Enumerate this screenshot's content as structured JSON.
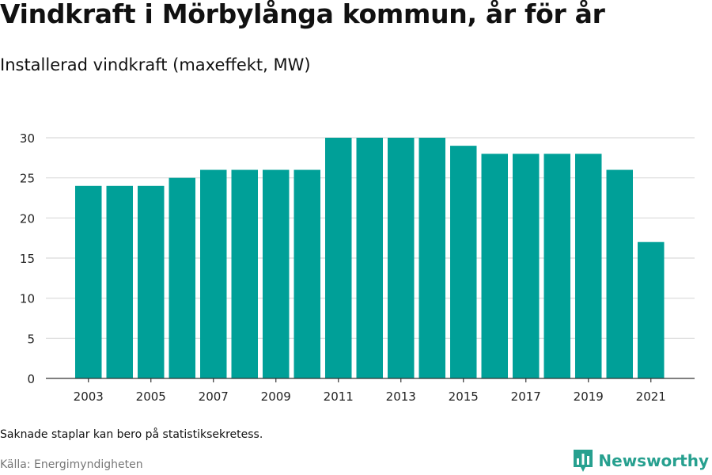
{
  "title": "Vindkraft i Mörbylånga kommun, år för år",
  "subtitle": "Installerad vindkraft (maxeffekt, MW)",
  "note": "Saknade staplar kan bero på statistiksekretess.",
  "source": "Källa: Energimyndigheten",
  "brand": {
    "name": "Newsworthy",
    "icon": "newsworthy-logo-icon"
  },
  "colors": {
    "bar": "#00a098",
    "brand": "#27a08f",
    "grid": "#d9d9d9",
    "axis": "#333333"
  },
  "chart_data": {
    "type": "bar",
    "categories": [
      "2003",
      "2004",
      "2005",
      "2006",
      "2007",
      "2008",
      "2009",
      "2010",
      "2011",
      "2012",
      "2013",
      "2014",
      "2015",
      "2016",
      "2017",
      "2018",
      "2019",
      "2020",
      "2021"
    ],
    "values": [
      24,
      24,
      24,
      25,
      26,
      26,
      26,
      26,
      30,
      30,
      30,
      30,
      29,
      28,
      28,
      28,
      28,
      26,
      17
    ],
    "x_tick_labels": [
      "2003",
      "2005",
      "2007",
      "2009",
      "2011",
      "2013",
      "2015",
      "2017",
      "2019",
      "2021"
    ],
    "y_ticks": [
      0,
      5,
      10,
      15,
      20,
      25,
      30
    ],
    "ylim": [
      0,
      30
    ],
    "grid": true,
    "legend": "none"
  }
}
